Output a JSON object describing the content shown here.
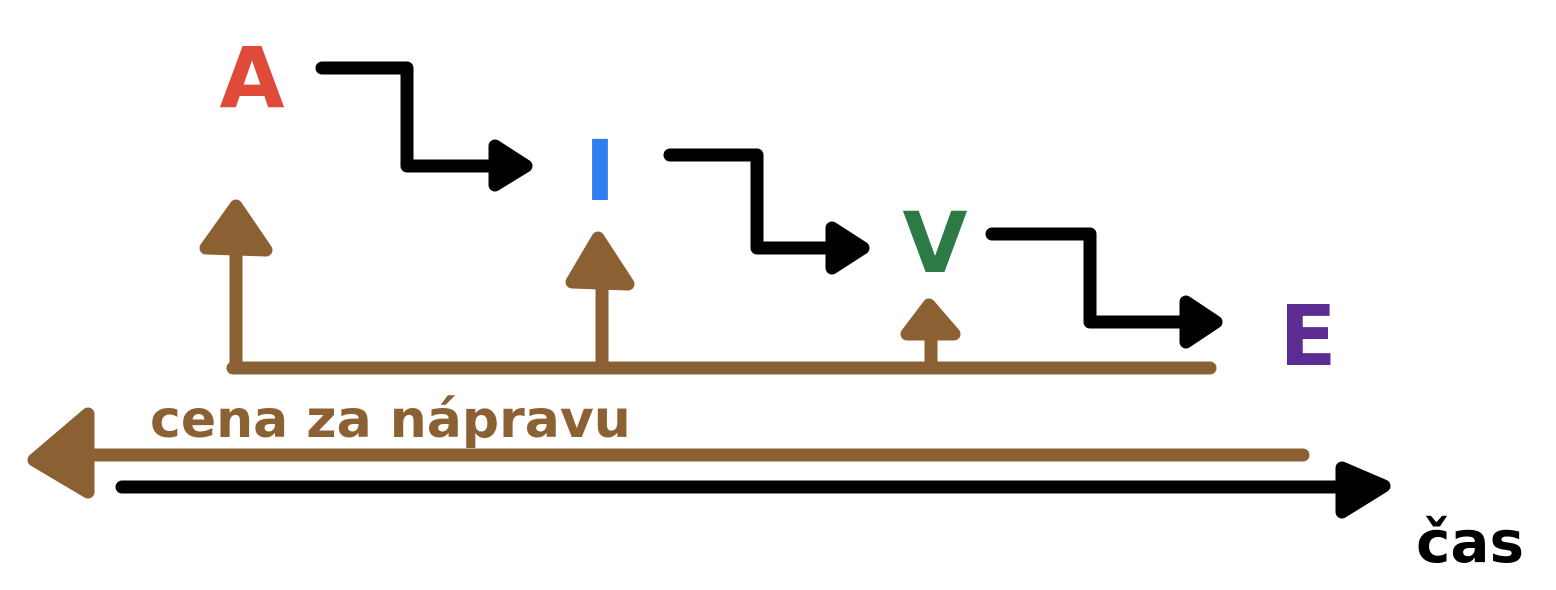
{
  "stages": [
    {
      "letter": "A",
      "color": "#e04a3a"
    },
    {
      "letter": "I",
      "color": "#2f7ff0"
    },
    {
      "letter": "V",
      "color": "#2d7a44"
    },
    {
      "letter": "E",
      "color": "#5b2d92"
    }
  ],
  "cost_label": "cena za nápravu",
  "time_label": "čas",
  "colors": {
    "flow_arrow": "#000000",
    "cost": "#8b6033",
    "background": "#ffffff"
  }
}
